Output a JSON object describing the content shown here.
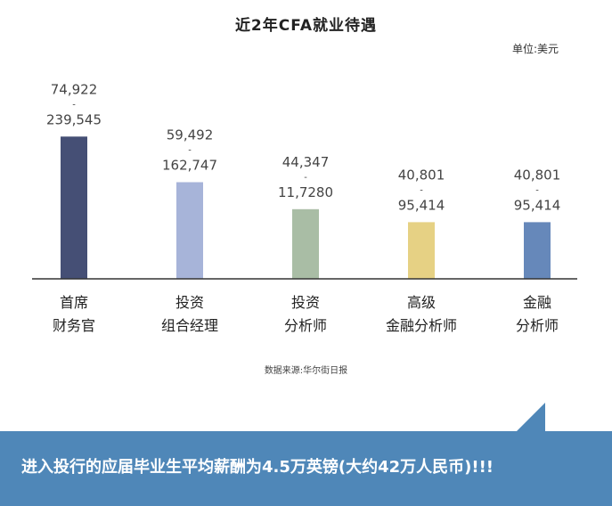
{
  "chart_data": {
    "type": "bar",
    "title": "近2年CFA就业待遇",
    "unit": "单位:美元",
    "source": "数据来源:华尔街日报",
    "categories": [
      [
        "首席",
        "财务官"
      ],
      [
        "投资",
        "组合经理"
      ],
      [
        "投资",
        "分析师"
      ],
      [
        "高级",
        "金融分析师"
      ],
      [
        "金融",
        "分析师"
      ]
    ],
    "range_labels": [
      {
        "low": "74,922",
        "sep": "-",
        "high": "239,545"
      },
      {
        "low": "59,492",
        "sep": "-",
        "high": "162,747"
      },
      {
        "low": "44,347",
        "sep": "-",
        "high": "11,7280"
      },
      {
        "low": "40,801",
        "sep": "-",
        "high": "95,414"
      },
      {
        "low": "40,801",
        "sep": "-",
        "high": "95,414"
      }
    ],
    "values": [
      239545,
      162747,
      117280,
      95414,
      95414
    ],
    "colors": [
      "#454f75",
      "#a7b4d9",
      "#a9bda5",
      "#e6d184",
      "#6688ba"
    ],
    "ylim": [
      0,
      246000
    ]
  },
  "banner": {
    "text": "进入投行的应届毕业生平均薪酬为4.5万英镑(大约42万人民币)!!!",
    "color": "#4f87b8"
  }
}
